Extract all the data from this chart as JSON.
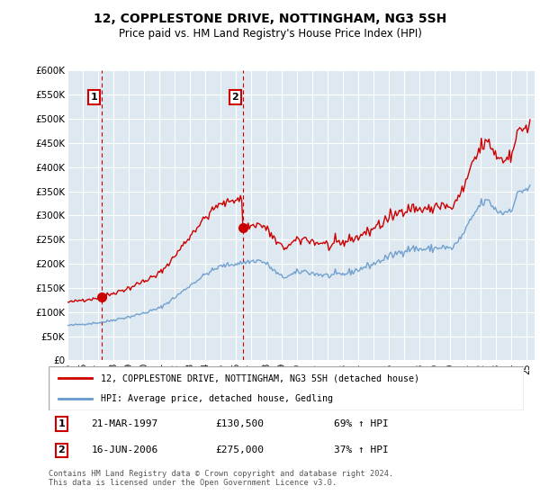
{
  "title": "12, COPPLESTONE DRIVE, NOTTINGHAM, NG3 5SH",
  "subtitle": "Price paid vs. HM Land Registry's House Price Index (HPI)",
  "yticks": [
    0,
    50000,
    100000,
    150000,
    200000,
    250000,
    300000,
    350000,
    400000,
    450000,
    500000,
    550000,
    600000
  ],
  "legend_line1": "12, COPPLESTONE DRIVE, NOTTINGHAM, NG3 5SH (detached house)",
  "legend_line2": "HPI: Average price, detached house, Gedling",
  "sale1_date": "21-MAR-1997",
  "sale1_price": "£130,500",
  "sale1_hpi": "69% ↑ HPI",
  "sale2_date": "16-JUN-2006",
  "sale2_price": "£275,000",
  "sale2_hpi": "37% ↑ HPI",
  "footer": "Contains HM Land Registry data © Crown copyright and database right 2024.\nThis data is licensed under the Open Government Licence v3.0.",
  "line_color_hpi": "#6699cc",
  "line_color_property": "#cc0000",
  "dashed_vline_color": "#cc0000",
  "background_color": "#ffffff",
  "plot_bg_color": "#dde8f0",
  "grid_color": "#ffffff",
  "sale1_x": 1997.22,
  "sale2_x": 2006.46,
  "sale1_y": 130500,
  "sale2_y": 275000,
  "x_min": 1995.0,
  "x_max": 2025.5,
  "y_min": 0,
  "y_max": 600000
}
